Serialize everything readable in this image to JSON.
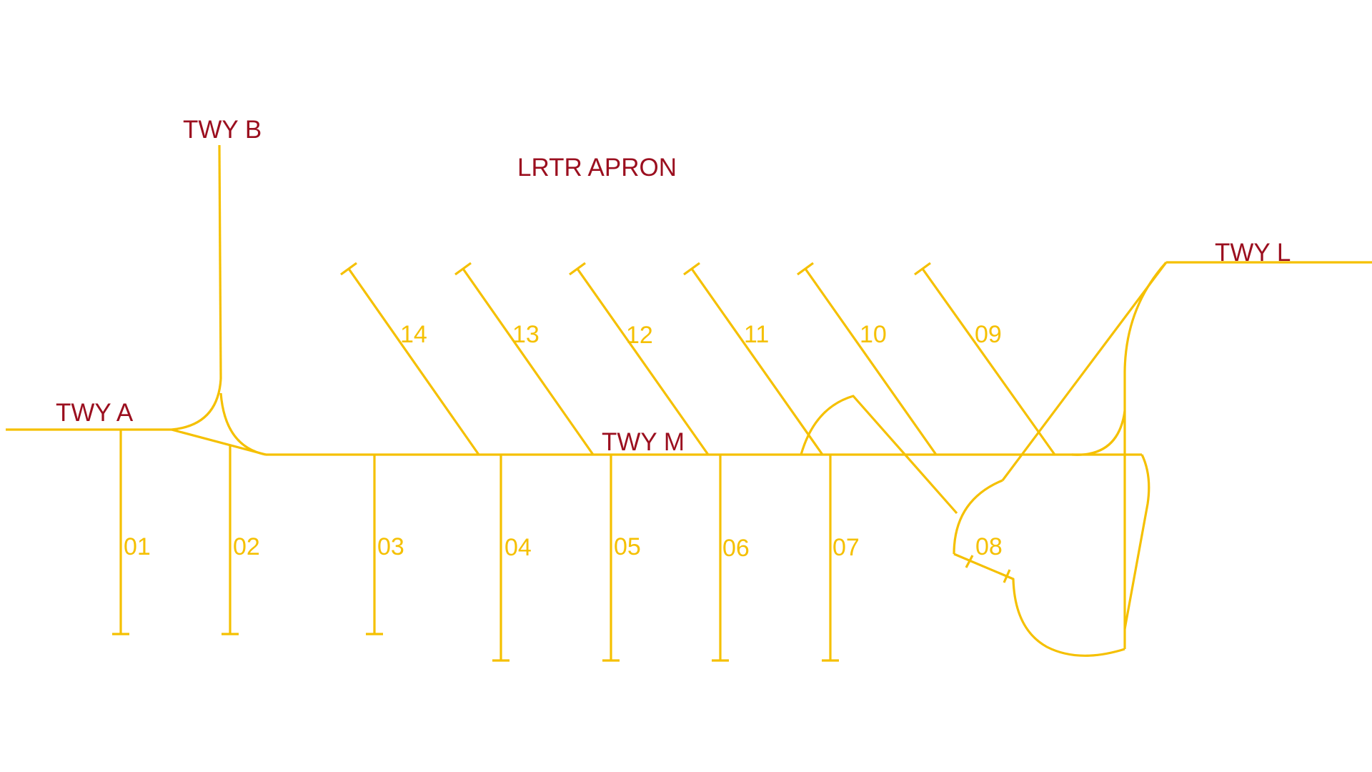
{
  "apron": {
    "title": "LRTR APRON"
  },
  "taxiways": {
    "a": "TWY A",
    "b": "TWY B",
    "l": "TWY L",
    "m": "TWY M"
  },
  "stands": [
    "01",
    "02",
    "03",
    "04",
    "05",
    "06",
    "07",
    "08",
    "09",
    "10",
    "11",
    "12",
    "13",
    "14"
  ],
  "colors": {
    "line": "#f5c000",
    "taxiway_label": "#9b0f1f",
    "stand_label": "#f5c000",
    "background": "#ffffff"
  }
}
